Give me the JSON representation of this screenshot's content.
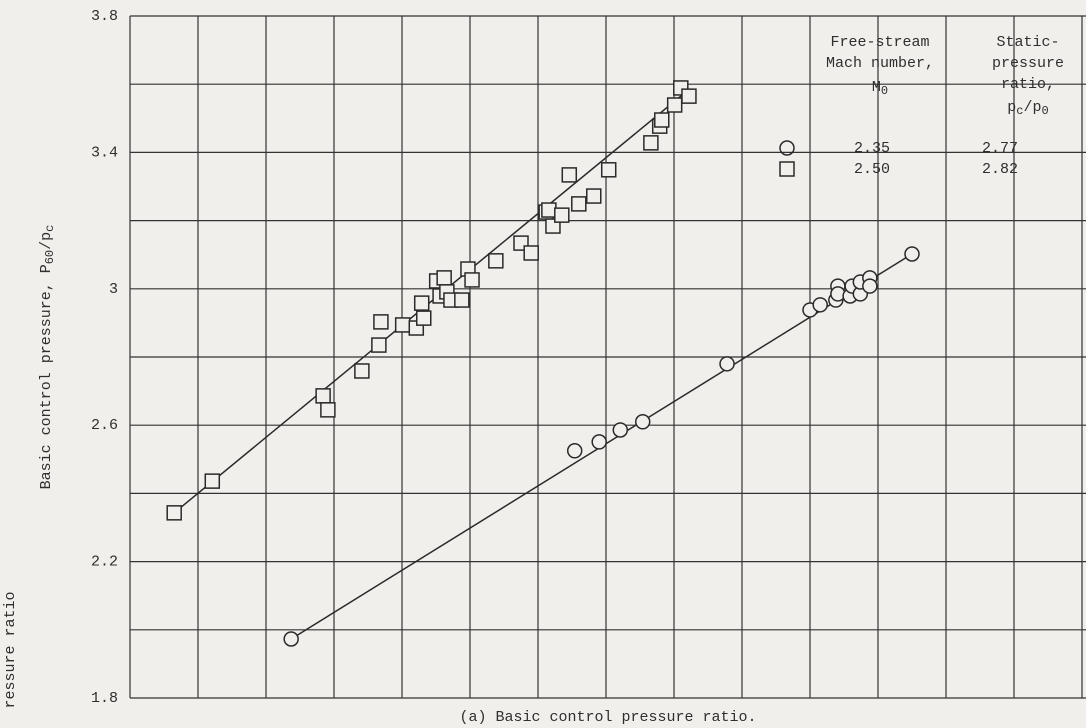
{
  "chart_data": {
    "type": "scatter",
    "caption": "(a) Basic control pressure ratio.",
    "side_label": "ressure ratio",
    "ylabel": {
      "parts": [
        "Basic control pressure, P",
        "60",
        "/p",
        "c"
      ]
    },
    "ylim": [
      1.8,
      3.8
    ],
    "yticks": [
      1.8,
      2.2,
      2.6,
      3.0,
      3.4,
      3.8
    ],
    "yminor": [
      2.0,
      2.4,
      2.8,
      3.2,
      3.6
    ],
    "xlim": [
      0,
      14
    ],
    "xticks": [
      0,
      1,
      2,
      3,
      4,
      5,
      6,
      7,
      8,
      9,
      10,
      11,
      12,
      13,
      14
    ],
    "grid": true,
    "legend": {
      "mach_header": [
        "Free-stream",
        "Mach number,"
      ],
      "mach_symbol": [
        "M",
        "0"
      ],
      "ratio_header": [
        "Static-",
        "pressure",
        "ratio,"
      ],
      "ratio_symbol": [
        "p",
        "c",
        "/p",
        "0"
      ]
    },
    "series": [
      {
        "name": "2.35",
        "pressure_ratio": "2.77",
        "marker": "circle",
        "color": "#2a2a2a",
        "x": [
          2.37,
          6.54,
          6.9,
          7.21,
          7.54,
          8.78,
          10.0,
          10.15,
          10.38,
          10.41,
          10.41,
          10.59,
          10.62,
          10.74,
          10.74,
          10.88,
          10.88,
          11.5
        ],
        "values": [
          1.973,
          2.525,
          2.551,
          2.586,
          2.61,
          2.78,
          2.938,
          2.953,
          2.967,
          3.008,
          2.985,
          2.979,
          3.008,
          2.985,
          3.02,
          3.032,
          3.008,
          3.102
        ],
        "fit": {
          "x": [
            2.37,
            11.5
          ],
          "values": [
            1.973,
            3.102
          ]
        }
      },
      {
        "name": "2.50",
        "pressure_ratio": "2.82",
        "marker": "square",
        "color": "#2a2a2a",
        "x": [
          0.65,
          1.21,
          2.84,
          2.91,
          3.41,
          3.66,
          3.69,
          4.01,
          4.21,
          4.29,
          4.32,
          4.51,
          4.56,
          4.62,
          4.66,
          4.72,
          4.88,
          4.97,
          5.03,
          5.38,
          5.75,
          5.9,
          6.12,
          6.16,
          6.22,
          6.35,
          6.46,
          6.6,
          6.82,
          7.04,
          7.66,
          7.79,
          7.82,
          8.01,
          8.1,
          8.22
        ],
        "values": [
          2.343,
          2.436,
          2.686,
          2.645,
          2.759,
          2.835,
          2.903,
          2.894,
          2.885,
          2.958,
          2.914,
          3.023,
          2.979,
          3.032,
          2.991,
          2.967,
          2.967,
          3.058,
          3.026,
          3.082,
          3.134,
          3.105,
          3.225,
          3.231,
          3.184,
          3.216,
          3.334,
          3.249,
          3.272,
          3.349,
          3.428,
          3.477,
          3.495,
          3.539,
          3.589,
          3.565
        ],
        "fit": {
          "x": [
            0.65,
            8.21
          ],
          "values": [
            2.343,
            3.583
          ]
        }
      }
    ]
  }
}
